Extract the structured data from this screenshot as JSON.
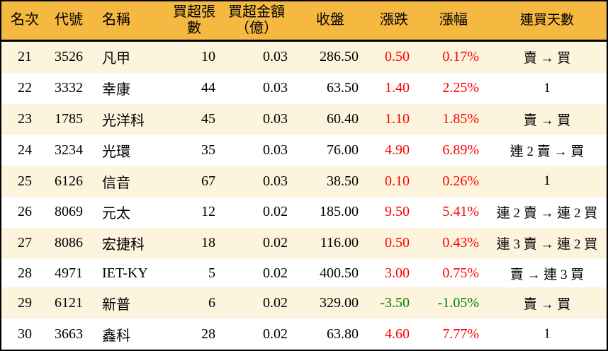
{
  "colors": {
    "header_bg": "#F5B942",
    "stripe_bg": "#FCF4DC",
    "row_bg": "#FFFFFF",
    "up_text": "#FF0000",
    "down_text": "#007F00",
    "text": "#000000",
    "border": "#000000"
  },
  "chart_data": {
    "type": "table",
    "title": "",
    "columns": [
      {
        "key": "rank",
        "label": "名次"
      },
      {
        "key": "code",
        "label": "代號"
      },
      {
        "key": "name",
        "label": "名稱"
      },
      {
        "key": "volume",
        "label": "買超張數"
      },
      {
        "key": "amount",
        "label": "買超金額\n（億）"
      },
      {
        "key": "close",
        "label": "收盤"
      },
      {
        "key": "change",
        "label": "漲跌"
      },
      {
        "key": "change_pct",
        "label": "漲幅"
      },
      {
        "key": "streak",
        "label": "連買天數"
      }
    ],
    "rows": [
      {
        "rank": "21",
        "code": "3526",
        "name": "凡甲",
        "volume": "10",
        "amount": "0.03",
        "close": "286.50",
        "change": "0.50",
        "change_pct": "0.17%",
        "streak": "賣 → 買"
      },
      {
        "rank": "22",
        "code": "3332",
        "name": "幸康",
        "volume": "44",
        "amount": "0.03",
        "close": "63.50",
        "change": "1.40",
        "change_pct": "2.25%",
        "streak": "1"
      },
      {
        "rank": "23",
        "code": "1785",
        "name": "光洋科",
        "volume": "45",
        "amount": "0.03",
        "close": "60.40",
        "change": "1.10",
        "change_pct": "1.85%",
        "streak": "賣 → 買"
      },
      {
        "rank": "24",
        "code": "3234",
        "name": "光環",
        "volume": "35",
        "amount": "0.03",
        "close": "76.00",
        "change": "4.90",
        "change_pct": "6.89%",
        "streak": "連 2 賣 → 買"
      },
      {
        "rank": "25",
        "code": "6126",
        "name": "信音",
        "volume": "67",
        "amount": "0.03",
        "close": "38.50",
        "change": "0.10",
        "change_pct": "0.26%",
        "streak": "1"
      },
      {
        "rank": "26",
        "code": "8069",
        "name": "元太",
        "volume": "12",
        "amount": "0.02",
        "close": "185.00",
        "change": "9.50",
        "change_pct": "5.41%",
        "streak": "連 2 賣 → 連 2 買"
      },
      {
        "rank": "27",
        "code": "8086",
        "name": "宏捷科",
        "volume": "18",
        "amount": "0.02",
        "close": "116.00",
        "change": "0.50",
        "change_pct": "0.43%",
        "streak": "連 3 賣 → 連 2 買"
      },
      {
        "rank": "28",
        "code": "4971",
        "name": "IET-KY",
        "volume": "5",
        "amount": "0.02",
        "close": "400.50",
        "change": "3.00",
        "change_pct": "0.75%",
        "streak": "賣 → 連 3 買"
      },
      {
        "rank": "29",
        "code": "6121",
        "name": "新普",
        "volume": "6",
        "amount": "0.02",
        "close": "329.00",
        "change": "-3.50",
        "change_pct": "-1.05%",
        "streak": "賣 → 買"
      },
      {
        "rank": "30",
        "code": "3663",
        "name": "鑫科",
        "volume": "28",
        "amount": "0.02",
        "close": "63.80",
        "change": "4.60",
        "change_pct": "7.77%",
        "streak": "1"
      }
    ]
  }
}
